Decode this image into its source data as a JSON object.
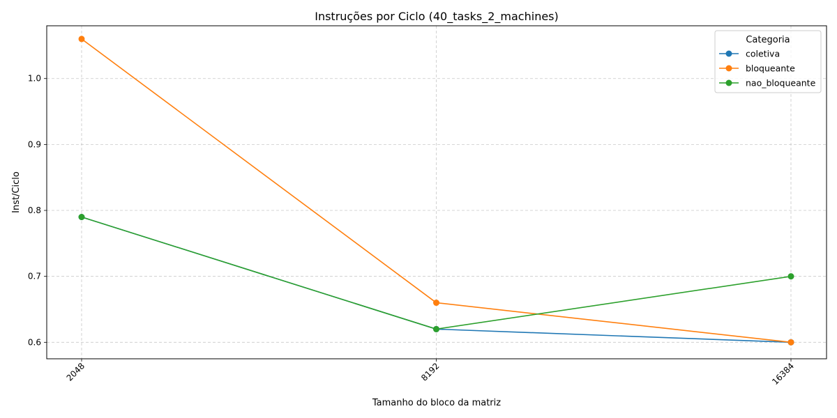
{
  "chart_data": {
    "type": "line",
    "title": "Instruções por Ciclo (40_tasks_2_machines)",
    "xlabel": "Tamanho do bloco da matriz",
    "ylabel": "Inst/Ciclo",
    "categories": [
      "2048",
      "8192",
      "16384"
    ],
    "ylim": [
      0.575,
      1.08
    ],
    "yticks": [
      "0.6",
      "0.7",
      "0.8",
      "0.9",
      "1.0"
    ],
    "grid": true,
    "legend": {
      "title": "Categoria",
      "placement": "top-right"
    },
    "series": [
      {
        "name": "coletiva",
        "color": "#1f77b4",
        "values": [
          0.79,
          0.62,
          0.6
        ]
      },
      {
        "name": "bloqueante",
        "color": "#ff7f0e",
        "values": [
          1.06,
          0.66,
          0.6
        ]
      },
      {
        "name": "nao_bloqueante",
        "color": "#2ca02c",
        "values": [
          0.79,
          0.62,
          0.7
        ]
      }
    ]
  }
}
